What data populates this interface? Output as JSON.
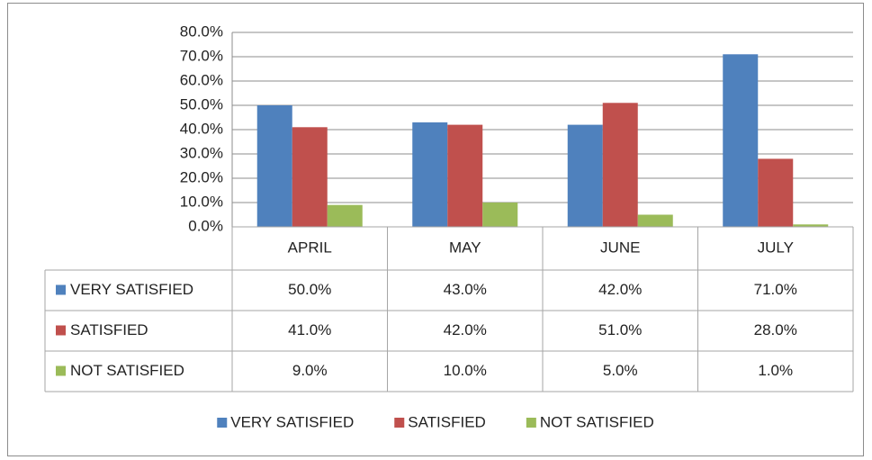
{
  "chart_data": {
    "type": "bar",
    "categories": [
      "APRIL",
      "MAY",
      "JUNE",
      "JULY"
    ],
    "series": [
      {
        "name": "VERY SATISFIED",
        "color": "#4f81bd",
        "values": [
          50,
          43,
          42,
          71
        ],
        "value_labels": [
          "50.0%",
          "43.0%",
          "42.0%",
          "71.0%"
        ]
      },
      {
        "name": "SATISFIED",
        "color": "#c0504d",
        "values": [
          41,
          42,
          51,
          28
        ],
        "value_labels": [
          "41.0%",
          "42.0%",
          "51.0%",
          "28.0%"
        ]
      },
      {
        "name": "NOT SATISFIED",
        "color": "#9bbb59",
        "values": [
          9,
          10,
          5,
          1
        ],
        "value_labels": [
          "9.0%",
          "10.0%",
          "5.0%",
          "1.0%"
        ]
      }
    ],
    "ylim": [
      0,
      80
    ],
    "yticks": [
      {
        "value": 0,
        "label": "0.0%"
      },
      {
        "value": 10,
        "label": "10.0%"
      },
      {
        "value": 20,
        "label": "20.0%"
      },
      {
        "value": 30,
        "label": "30.0%"
      },
      {
        "value": 40,
        "label": "40.0%"
      },
      {
        "value": 50,
        "label": "50.0%"
      },
      {
        "value": 60,
        "label": "60.0%"
      },
      {
        "value": 70,
        "label": "70.0%"
      },
      {
        "value": 80,
        "label": "80.0%"
      }
    ],
    "grid": true,
    "legend": "bottom"
  }
}
